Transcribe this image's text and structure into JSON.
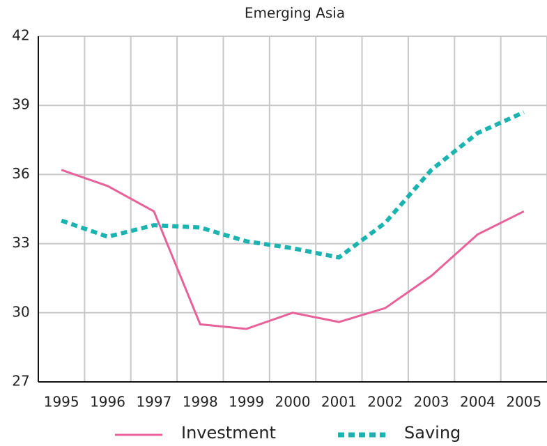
{
  "chart_data": {
    "type": "line",
    "title": "Emerging Asia",
    "categories": [
      "1995",
      "1996",
      "1997",
      "1998",
      "1999",
      "2000",
      "2001",
      "2002",
      "2003",
      "2004",
      "2005"
    ],
    "series": [
      {
        "name": "Investment",
        "color": "#e8629a",
        "dash": false,
        "values": [
          36.2,
          35.5,
          34.4,
          29.5,
          29.3,
          30.0,
          29.6,
          30.2,
          31.6,
          33.4,
          34.4
        ]
      },
      {
        "name": "Saving",
        "color": "#1bb3b0",
        "dash": true,
        "values": [
          34.0,
          33.3,
          33.8,
          33.7,
          33.1,
          32.8,
          32.4,
          33.9,
          36.2,
          37.8,
          38.7
        ]
      }
    ],
    "ylim": [
      27,
      42
    ],
    "yticks": [
      27,
      30,
      33,
      36,
      39,
      42
    ],
    "grid": true,
    "legend": "bottom"
  }
}
